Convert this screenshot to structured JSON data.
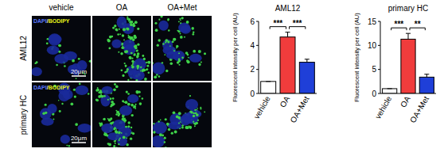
{
  "images": {
    "columns": [
      "vehicle",
      "OA",
      "OA+Met"
    ],
    "rows": [
      "AML12",
      "primary HC"
    ],
    "stains": [
      {
        "text": "DAPI",
        "color": "#5a78ff"
      },
      {
        "text": "/",
        "color": "#ffffff"
      },
      {
        "text": "BODIPY",
        "color": "#e6f21a"
      }
    ],
    "scale_bar": "20μm"
  },
  "chart_data": [
    {
      "type": "bar",
      "title": "AML12",
      "ylabel": "Fluorescent intensity per cell (AU)",
      "categories": [
        "vehicle",
        "OA",
        "OA+Met"
      ],
      "values": [
        1,
        4.7,
        2.6
      ],
      "errors": [
        0,
        0.4,
        0.25
      ],
      "colors": [
        "#ffffff",
        "#f03c3c",
        "#1f3fd8"
      ],
      "ylim": [
        0,
        6
      ],
      "yticks": [
        0,
        2,
        4,
        6
      ],
      "annotations": [
        {
          "from": 0,
          "to": 1,
          "text": "***"
        },
        {
          "from": 1,
          "to": 2,
          "text": "***"
        }
      ]
    },
    {
      "type": "bar",
      "title": "primary HC",
      "ylabel": "Fluorescent intensity per cell (AU)",
      "categories": [
        "vehicle",
        "OA",
        "OA+Met"
      ],
      "values": [
        1,
        11.3,
        3.4
      ],
      "errors": [
        0,
        1.2,
        0.6
      ],
      "colors": [
        "#ffffff",
        "#f03c3c",
        "#1f3fd8"
      ],
      "ylim": [
        0,
        15
      ],
      "yticks": [
        0,
        5,
        10,
        15
      ],
      "annotations": [
        {
          "from": 0,
          "to": 1,
          "text": "***"
        },
        {
          "from": 1,
          "to": 2,
          "text": "**"
        }
      ]
    }
  ]
}
